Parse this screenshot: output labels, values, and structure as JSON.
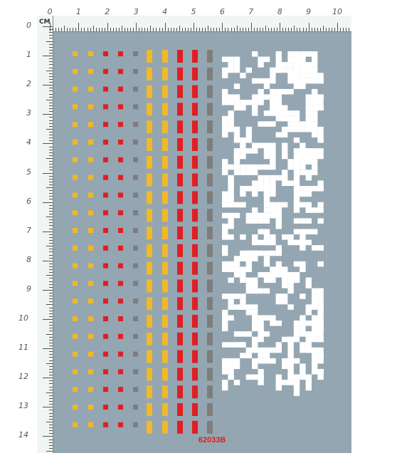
{
  "ruler": {
    "unit_label": "CM",
    "top_numbers": [
      "0",
      "1",
      "2",
      "3",
      "4",
      "5",
      "6",
      "7",
      "8",
      "9",
      "10"
    ],
    "left_numbers": [
      "0",
      "1",
      "2",
      "3",
      "4",
      "5",
      "6",
      "7",
      "8",
      "9",
      "10",
      "11",
      "12",
      "13",
      "14"
    ]
  },
  "sheet": {
    "product_code": "62033B",
    "colors": {
      "background": "#94a6b1",
      "yellow": "#f2b825",
      "red": "#e01e24",
      "gray": "#7d7d7d",
      "white": "#ffffff"
    },
    "rows": 22
  }
}
